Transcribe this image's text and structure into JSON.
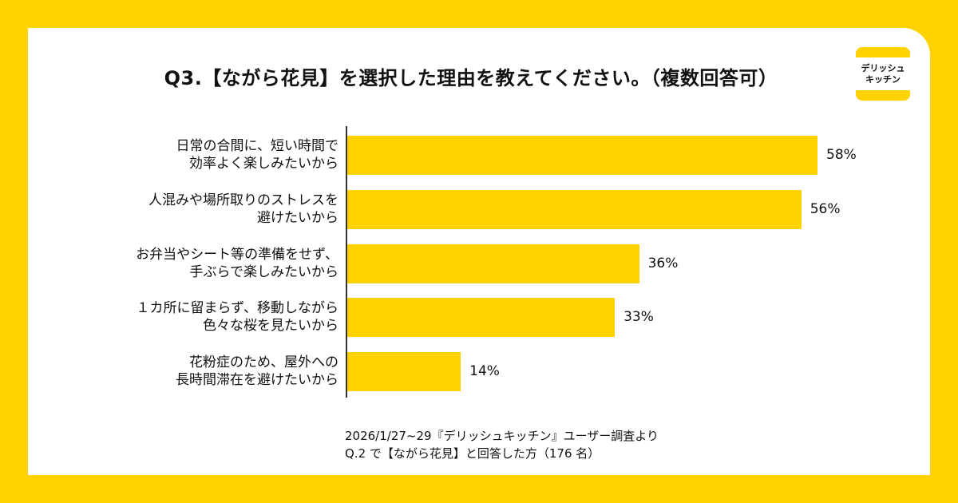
{
  "title": "Q3.【ながら花見】を選択した理由を教えてください。（複数回答可）",
  "logo": {
    "line1": "デリッシュ",
    "line2": "キッチン"
  },
  "colors": {
    "accent": "#FFD200",
    "card": "#FFFFFF"
  },
  "chart_data": {
    "type": "bar",
    "orientation": "horizontal",
    "title": "Q3.【ながら花見】を選択した理由を教えてください。（複数回答可）",
    "categories": [
      [
        "日常の合間に、短い時間で",
        "効率よく楽しみたいから"
      ],
      [
        "人混みや場所取りのストレスを",
        "避けたいから"
      ],
      [
        "お弁当やシート等の準備をせず、",
        "手ぶらで楽しみたいから"
      ],
      [
        "１カ所に留まらず、移動しながら",
        "色々な桜を見たいから"
      ],
      [
        "花粉症のため、屋外への",
        "長時間滞在を避けたいから"
      ]
    ],
    "values": [
      58,
      56,
      36,
      33,
      14
    ],
    "value_labels": [
      "58%",
      "56%",
      "36%",
      "33%",
      "14%"
    ],
    "unit": "%",
    "xlim": [
      0,
      60
    ]
  },
  "footnote": {
    "line1": "2026/1/27~29『デリッシュキッチン』ユーザー調査より",
    "line2": "Q.2 で【ながら花見】と回答した方（176 名）"
  }
}
